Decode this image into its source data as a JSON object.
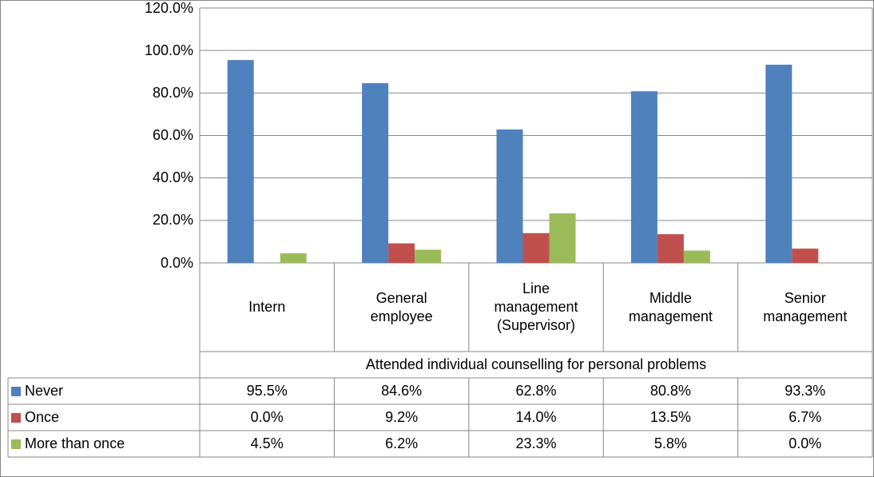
{
  "chart_data": {
    "type": "bar",
    "x_label": "Attended individual counselling for personal problems",
    "categories": [
      "Intern",
      "General employee",
      "Line management (Supervisor)",
      "Middle management",
      "Senior management"
    ],
    "series": [
      {
        "name": "Never",
        "color": "#4f81bd",
        "values": [
          95.5,
          84.6,
          62.8,
          80.8,
          93.3
        ],
        "value_labels": [
          "95.5%",
          "84.6%",
          "62.8%",
          "80.8%",
          "93.3%"
        ]
      },
      {
        "name": "Once",
        "color": "#c0504d",
        "values": [
          0.0,
          9.2,
          14.0,
          13.5,
          6.7
        ],
        "value_labels": [
          "0.0%",
          "9.2%",
          "14.0%",
          "13.5%",
          "6.7%"
        ]
      },
      {
        "name": "More than once",
        "color": "#9bbb59",
        "values": [
          4.5,
          6.2,
          23.3,
          5.8,
          0.0
        ],
        "value_labels": [
          "4.5%",
          "6.2%",
          "23.3%",
          "5.8%",
          "0.0%"
        ]
      }
    ],
    "ylim": [
      0,
      120
    ],
    "yticks": [
      {
        "value": 0,
        "label": "0.0%"
      },
      {
        "value": 20,
        "label": "20.0%"
      },
      {
        "value": 40,
        "label": "40.0%"
      },
      {
        "value": 60,
        "label": "60.0%"
      },
      {
        "value": 80,
        "label": "80.0%"
      },
      {
        "value": 100,
        "label": "100.0%"
      },
      {
        "value": 120,
        "label": "120.0%"
      }
    ],
    "grid": true
  }
}
